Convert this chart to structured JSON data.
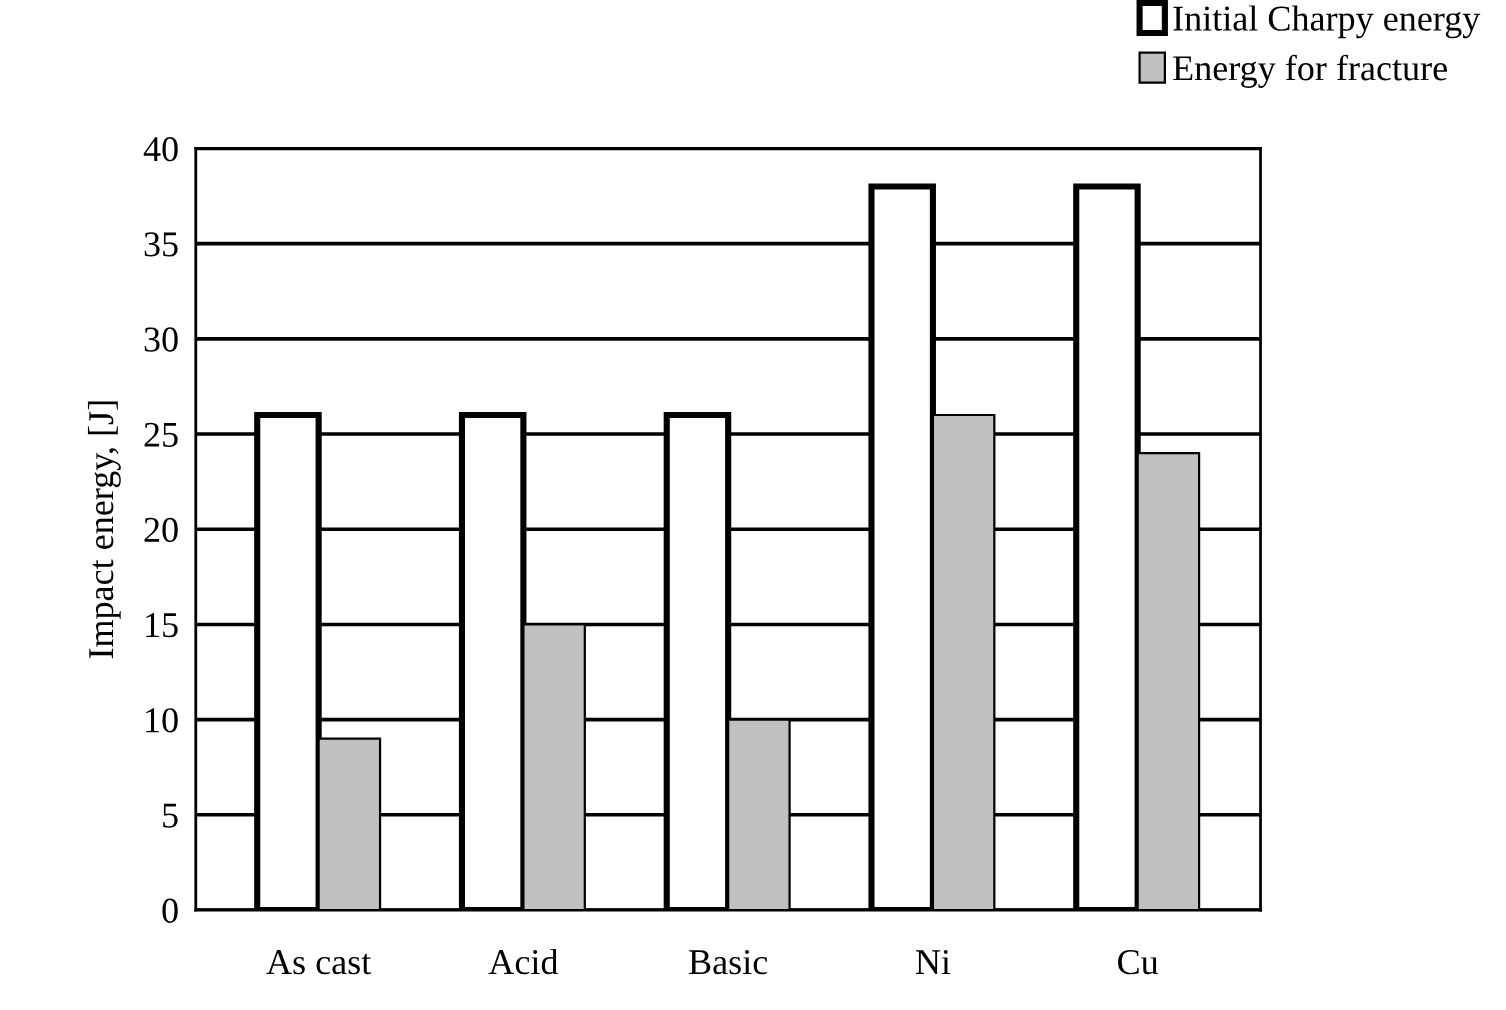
{
  "chart_data": {
    "type": "bar",
    "ylabel": "Impact energy, [J]",
    "categories": [
      "As cast",
      "Acid",
      "Basic",
      "Ni",
      "Cu"
    ],
    "series": [
      {
        "name": "Initial Charpy energy",
        "color": "#ffffff",
        "values": [
          26,
          26,
          26,
          38,
          38
        ]
      },
      {
        "name": "Energy for fracture",
        "color": "#c0c0c0",
        "values": [
          9,
          15,
          10,
          26,
          24
        ]
      }
    ],
    "ylim": [
      0,
      40
    ],
    "yticks": [
      0,
      5,
      10,
      15,
      20,
      25,
      30,
      35,
      40
    ],
    "grid": "y",
    "legend": "top right"
  }
}
